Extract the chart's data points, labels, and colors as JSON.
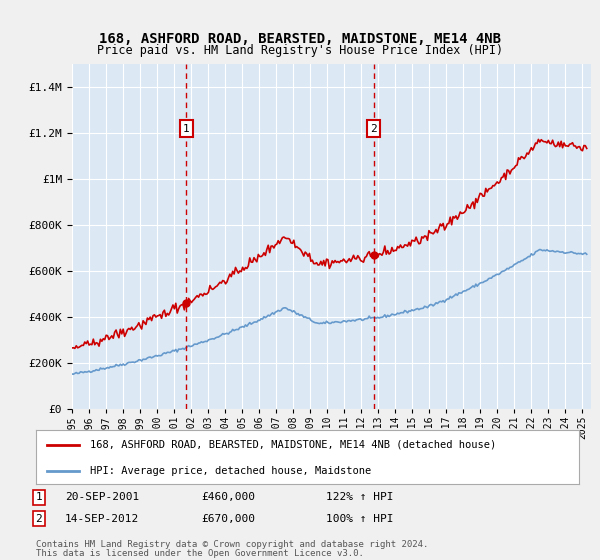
{
  "title": "168, ASHFORD ROAD, BEARSTED, MAIDSTONE, ME14 4NB",
  "subtitle": "Price paid vs. HM Land Registry's House Price Index (HPI)",
  "legend_line1": "168, ASHFORD ROAD, BEARSTED, MAIDSTONE, ME14 4NB (detached house)",
  "legend_line2": "HPI: Average price, detached house, Maidstone",
  "marker1_date": "20-SEP-2001",
  "marker1_price": "£460,000",
  "marker1_hpi": "122% ↑ HPI",
  "marker1_year": 2001.72,
  "marker1_value": 460000,
  "marker2_date": "14-SEP-2012",
  "marker2_price": "£670,000",
  "marker2_hpi": "100% ↑ HPI",
  "marker2_year": 2012.72,
  "marker2_value": 670000,
  "footer1": "Contains HM Land Registry data © Crown copyright and database right 2024.",
  "footer2": "This data is licensed under the Open Government Licence v3.0.",
  "background_color": "#dce9f5",
  "grid_color": "#ffffff",
  "red_color": "#cc0000",
  "blue_color": "#6699cc",
  "ylim_max": 1500000,
  "xlim_start": 1995,
  "xlim_end": 2025.5
}
